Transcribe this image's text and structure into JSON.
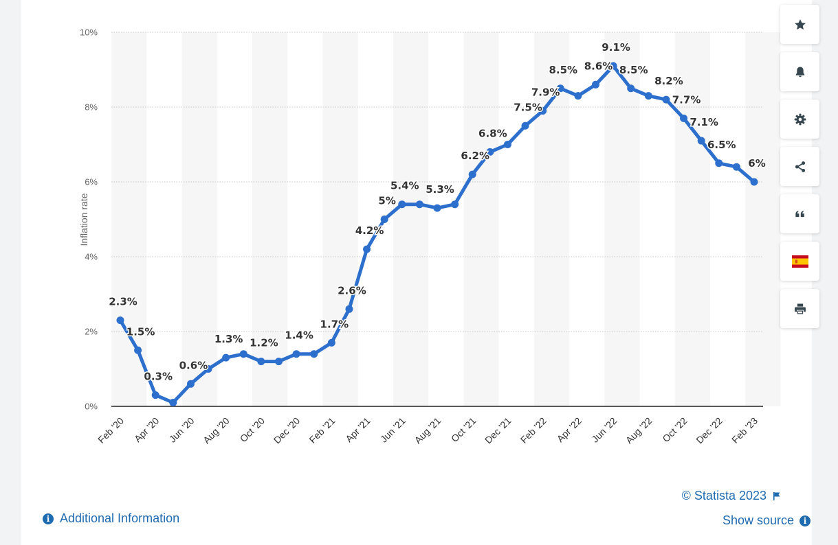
{
  "colors": {
    "line": "#2d6fcc",
    "link": "#1f6bb0",
    "band": "#f6f6f6",
    "grid": "#c8c8c8",
    "axis": "#222222",
    "label": "#333333",
    "tick": "#666666"
  },
  "chart_data": {
    "type": "line",
    "ylabel": "Inflation rate",
    "xlabel": "",
    "ylim": [
      0,
      10
    ],
    "y_ticks": [
      0,
      2,
      4,
      6,
      8,
      10
    ],
    "y_tick_labels": [
      "0%",
      "2%",
      "4%",
      "6%",
      "8%",
      "10%"
    ],
    "x_tick_labels": [
      "Feb '20",
      "Apr '20",
      "Jun '20",
      "Aug '20",
      "Oct '20",
      "Dec '20",
      "Feb '21",
      "Apr '21",
      "Jun '21",
      "Aug '21",
      "Oct '21",
      "Dec '21",
      "Feb '22",
      "Apr '22",
      "Jun '22",
      "Aug '22",
      "Oct '22",
      "Dec '22",
      "Feb '23"
    ],
    "series": [
      {
        "name": "Inflation rate",
        "values": [
          2.3,
          1.5,
          0.3,
          0.1,
          0.6,
          1.0,
          1.3,
          1.4,
          1.2,
          1.2,
          1.4,
          1.4,
          1.7,
          2.6,
          4.2,
          5.0,
          5.4,
          5.4,
          5.3,
          5.4,
          6.2,
          6.8,
          7.0,
          7.5,
          7.9,
          8.5,
          8.3,
          8.6,
          9.1,
          8.5,
          8.3,
          8.2,
          7.7,
          7.1,
          6.5,
          6.4,
          6.0
        ]
      }
    ],
    "data_labels": [
      {
        "index": 0,
        "text": "2.3%"
      },
      {
        "index": 1,
        "text": "1.5%"
      },
      {
        "index": 2,
        "text": "0.3%"
      },
      {
        "index": 4,
        "text": "0.6%"
      },
      {
        "index": 6,
        "text": "1.3%"
      },
      {
        "index": 8,
        "text": "1.2%"
      },
      {
        "index": 10,
        "text": "1.4%"
      },
      {
        "index": 12,
        "text": "1.7%"
      },
      {
        "index": 13,
        "text": "2.6%"
      },
      {
        "index": 14,
        "text": "4.2%"
      },
      {
        "index": 15,
        "text": "5%"
      },
      {
        "index": 16,
        "text": "5.4%"
      },
      {
        "index": 18,
        "text": "5.3%"
      },
      {
        "index": 20,
        "text": "6.2%"
      },
      {
        "index": 21,
        "text": "6.8%"
      },
      {
        "index": 23,
        "text": "7.5%"
      },
      {
        "index": 24,
        "text": "7.9%"
      },
      {
        "index": 25,
        "text": "8.5%"
      },
      {
        "index": 27,
        "text": "8.6%"
      },
      {
        "index": 28,
        "text": "9.1%"
      },
      {
        "index": 29,
        "text": "8.5%"
      },
      {
        "index": 31,
        "text": "8.2%"
      },
      {
        "index": 32,
        "text": "7.7%"
      },
      {
        "index": 33,
        "text": "7.1%"
      },
      {
        "index": 34,
        "text": "6.5%"
      },
      {
        "index": 36,
        "text": "6%"
      }
    ]
  },
  "sidebar": {
    "buttons": [
      {
        "name": "favorite-button",
        "icon": "star-icon"
      },
      {
        "name": "notification-button",
        "icon": "bell-icon"
      },
      {
        "name": "settings-button",
        "icon": "gear-icon"
      },
      {
        "name": "share-button",
        "icon": "share-icon"
      },
      {
        "name": "cite-button",
        "icon": "quote-icon"
      },
      {
        "name": "language-button",
        "icon": "spain-flag-icon"
      },
      {
        "name": "print-button",
        "icon": "printer-icon"
      }
    ]
  },
  "footer": {
    "credit": "© Statista 2023",
    "show_source": "Show source",
    "additional_info": "Additional Information"
  }
}
